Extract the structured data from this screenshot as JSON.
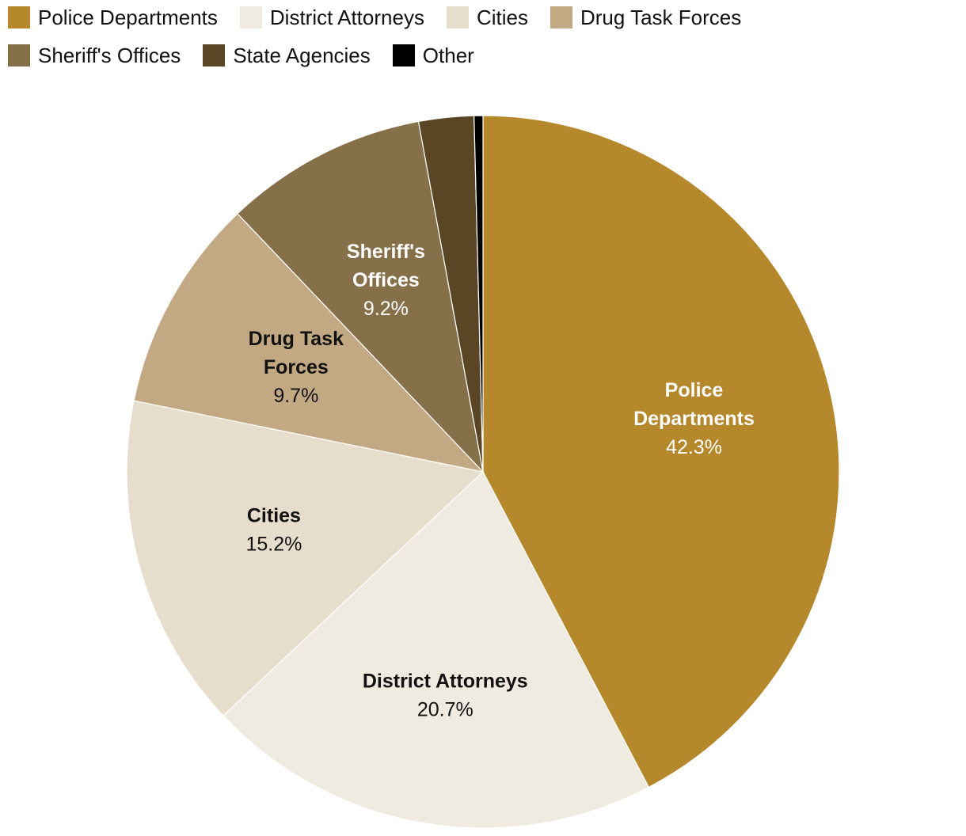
{
  "chart_data": {
    "type": "pie",
    "title": "",
    "legend_position": "top",
    "start_angle_deg": 0,
    "direction": "clockwise",
    "slices": [
      {
        "name": "Police Departments",
        "value": 42.3,
        "value_label": "42.3%",
        "label_lines": [
          "Police",
          "Departments"
        ],
        "color": "#b5882b",
        "text_color": "#ffffff",
        "show_label": true
      },
      {
        "name": "District Attorneys",
        "value": 20.7,
        "value_label": "20.7%",
        "label_lines": [
          "District Attorneys"
        ],
        "color": "#f0ebe1",
        "text_color": "#111111",
        "show_label": true
      },
      {
        "name": "Cities",
        "value": 15.2,
        "value_label": "15.2%",
        "label_lines": [
          "Cities"
        ],
        "color": "#e7ddcc",
        "text_color": "#111111",
        "show_label": true
      },
      {
        "name": "Drug Task Forces",
        "value": 9.7,
        "value_label": "9.7%",
        "label_lines": [
          "Drug Task",
          "Forces"
        ],
        "color": "#c2a983",
        "text_color": "#111111",
        "show_label": true
      },
      {
        "name": "Sheriff's Offices",
        "value": 9.2,
        "value_label": "9.2%",
        "label_lines": [
          "Sheriff's",
          "Offices"
        ],
        "color": "#85704a",
        "text_color": "#ffffff",
        "show_label": true
      },
      {
        "name": "State Agencies",
        "value": 2.5,
        "value_label": "",
        "label_lines": [],
        "color": "#5a4524",
        "text_color": "#ffffff",
        "show_label": false
      },
      {
        "name": "Other",
        "value": 0.4,
        "value_label": "",
        "label_lines": [],
        "color": "#000000",
        "text_color": "#ffffff",
        "show_label": false
      }
    ]
  }
}
